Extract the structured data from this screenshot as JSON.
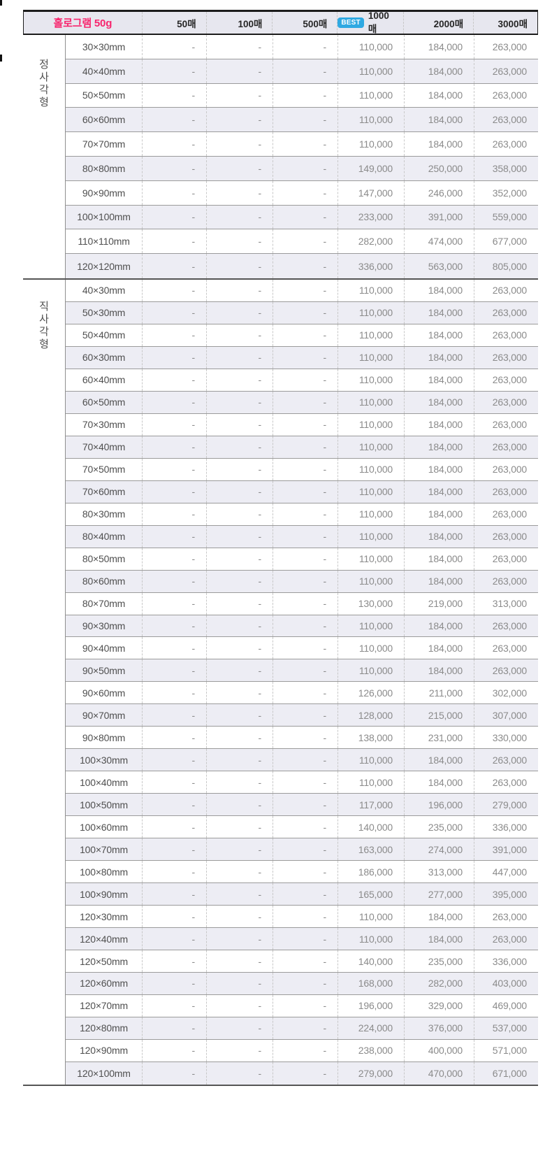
{
  "header": {
    "title": "홀로그램 50g",
    "best_badge_label": "BEST",
    "columns": [
      {
        "label": "50매",
        "best": false
      },
      {
        "label": "100매",
        "best": false
      },
      {
        "label": "500매",
        "best": false
      },
      {
        "label": "1000매",
        "best": true
      },
      {
        "label": "2000매",
        "best": false
      },
      {
        "label": "3000매",
        "best": false
      }
    ]
  },
  "groups": [
    {
      "label": "정사각형",
      "rows": [
        {
          "size": "30×30mm",
          "prices": [
            "-",
            "-",
            "-",
            "110,000",
            "184,000",
            "263,000"
          ]
        },
        {
          "size": "40×40mm",
          "prices": [
            "-",
            "-",
            "-",
            "110,000",
            "184,000",
            "263,000"
          ]
        },
        {
          "size": "50×50mm",
          "prices": [
            "-",
            "-",
            "-",
            "110,000",
            "184,000",
            "263,000"
          ]
        },
        {
          "size": "60×60mm",
          "prices": [
            "-",
            "-",
            "-",
            "110,000",
            "184,000",
            "263,000"
          ]
        },
        {
          "size": "70×70mm",
          "prices": [
            "-",
            "-",
            "-",
            "110,000",
            "184,000",
            "263,000"
          ]
        },
        {
          "size": "80×80mm",
          "prices": [
            "-",
            "-",
            "-",
            "149,000",
            "250,000",
            "358,000"
          ]
        },
        {
          "size": "90×90mm",
          "prices": [
            "-",
            "-",
            "-",
            "147,000",
            "246,000",
            "352,000"
          ]
        },
        {
          "size": "100×100mm",
          "prices": [
            "-",
            "-",
            "-",
            "233,000",
            "391,000",
            "559,000"
          ]
        },
        {
          "size": "110×110mm",
          "prices": [
            "-",
            "-",
            "-",
            "282,000",
            "474,000",
            "677,000"
          ]
        },
        {
          "size": "120×120mm",
          "prices": [
            "-",
            "-",
            "-",
            "336,000",
            "563,000",
            "805,000"
          ]
        }
      ]
    },
    {
      "label": "직사각형",
      "rows": [
        {
          "size": "40×30mm",
          "prices": [
            "-",
            "-",
            "-",
            "110,000",
            "184,000",
            "263,000"
          ]
        },
        {
          "size": "50×30mm",
          "prices": [
            "-",
            "-",
            "-",
            "110,000",
            "184,000",
            "263,000"
          ]
        },
        {
          "size": "50×40mm",
          "prices": [
            "-",
            "-",
            "-",
            "110,000",
            "184,000",
            "263,000"
          ]
        },
        {
          "size": "60×30mm",
          "prices": [
            "-",
            "-",
            "-",
            "110,000",
            "184,000",
            "263,000"
          ]
        },
        {
          "size": "60×40mm",
          "prices": [
            "-",
            "-",
            "-",
            "110,000",
            "184,000",
            "263,000"
          ]
        },
        {
          "size": "60×50mm",
          "prices": [
            "-",
            "-",
            "-",
            "110,000",
            "184,000",
            "263,000"
          ]
        },
        {
          "size": "70×30mm",
          "prices": [
            "-",
            "-",
            "-",
            "110,000",
            "184,000",
            "263,000"
          ]
        },
        {
          "size": "70×40mm",
          "prices": [
            "-",
            "-",
            "-",
            "110,000",
            "184,000",
            "263,000"
          ]
        },
        {
          "size": "70×50mm",
          "prices": [
            "-",
            "-",
            "-",
            "110,000",
            "184,000",
            "263,000"
          ]
        },
        {
          "size": "70×60mm",
          "prices": [
            "-",
            "-",
            "-",
            "110,000",
            "184,000",
            "263,000"
          ]
        },
        {
          "size": "80×30mm",
          "prices": [
            "-",
            "-",
            "-",
            "110,000",
            "184,000",
            "263,000"
          ]
        },
        {
          "size": "80×40mm",
          "prices": [
            "-",
            "-",
            "-",
            "110,000",
            "184,000",
            "263,000"
          ]
        },
        {
          "size": "80×50mm",
          "prices": [
            "-",
            "-",
            "-",
            "110,000",
            "184,000",
            "263,000"
          ]
        },
        {
          "size": "80×60mm",
          "prices": [
            "-",
            "-",
            "-",
            "110,000",
            "184,000",
            "263,000"
          ]
        },
        {
          "size": "80×70mm",
          "prices": [
            "-",
            "-",
            "-",
            "130,000",
            "219,000",
            "313,000"
          ]
        },
        {
          "size": "90×30mm",
          "prices": [
            "-",
            "-",
            "-",
            "110,000",
            "184,000",
            "263,000"
          ]
        },
        {
          "size": "90×40mm",
          "prices": [
            "-",
            "-",
            "-",
            "110,000",
            "184,000",
            "263,000"
          ]
        },
        {
          "size": "90×50mm",
          "prices": [
            "-",
            "-",
            "-",
            "110,000",
            "184,000",
            "263,000"
          ]
        },
        {
          "size": "90×60mm",
          "prices": [
            "-",
            "-",
            "-",
            "126,000",
            "211,000",
            "302,000"
          ]
        },
        {
          "size": "90×70mm",
          "prices": [
            "-",
            "-",
            "-",
            "128,000",
            "215,000",
            "307,000"
          ]
        },
        {
          "size": "90×80mm",
          "prices": [
            "-",
            "-",
            "-",
            "138,000",
            "231,000",
            "330,000"
          ]
        },
        {
          "size": "100×30mm",
          "prices": [
            "-",
            "-",
            "-",
            "110,000",
            "184,000",
            "263,000"
          ]
        },
        {
          "size": "100×40mm",
          "prices": [
            "-",
            "-",
            "-",
            "110,000",
            "184,000",
            "263,000"
          ]
        },
        {
          "size": "100×50mm",
          "prices": [
            "-",
            "-",
            "-",
            "117,000",
            "196,000",
            "279,000"
          ]
        },
        {
          "size": "100×60mm",
          "prices": [
            "-",
            "-",
            "-",
            "140,000",
            "235,000",
            "336,000"
          ]
        },
        {
          "size": "100×70mm",
          "prices": [
            "-",
            "-",
            "-",
            "163,000",
            "274,000",
            "391,000"
          ]
        },
        {
          "size": "100×80mm",
          "prices": [
            "-",
            "-",
            "-",
            "186,000",
            "313,000",
            "447,000"
          ]
        },
        {
          "size": "100×90mm",
          "prices": [
            "-",
            "-",
            "-",
            "165,000",
            "277,000",
            "395,000"
          ]
        },
        {
          "size": "120×30mm",
          "prices": [
            "-",
            "-",
            "-",
            "110,000",
            "184,000",
            "263,000"
          ]
        },
        {
          "size": "120×40mm",
          "prices": [
            "-",
            "-",
            "-",
            "110,000",
            "184,000",
            "263,000"
          ]
        },
        {
          "size": "120×50mm",
          "prices": [
            "-",
            "-",
            "-",
            "140,000",
            "235,000",
            "336,000"
          ]
        },
        {
          "size": "120×60mm",
          "prices": [
            "-",
            "-",
            "-",
            "168,000",
            "282,000",
            "403,000"
          ]
        },
        {
          "size": "120×70mm",
          "prices": [
            "-",
            "-",
            "-",
            "196,000",
            "329,000",
            "469,000"
          ]
        },
        {
          "size": "120×80mm",
          "prices": [
            "-",
            "-",
            "-",
            "224,000",
            "376,000",
            "537,000"
          ]
        },
        {
          "size": "120×90mm",
          "prices": [
            "-",
            "-",
            "-",
            "238,000",
            "400,000",
            "571,000"
          ]
        },
        {
          "size": "120×100mm",
          "prices": [
            "-",
            "-",
            "-",
            "279,000",
            "470,000",
            "671,000"
          ]
        }
      ]
    }
  ],
  "colors": {
    "accent_pink": "#f7256d",
    "best_badge_blue": "#2fa9e2",
    "header_bg": "#e7e7ef",
    "row_alt_bg": "#ededf4",
    "dark_border": "#1c1c1c",
    "section_border": "#555555"
  }
}
